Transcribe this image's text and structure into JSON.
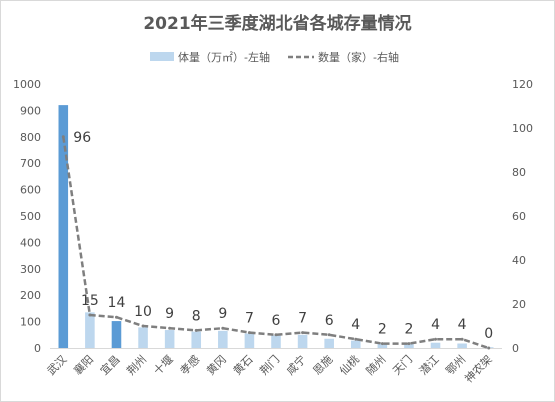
{
  "chart_data": {
    "type": "bar+line",
    "title": "2021年三季度湖北省各城存量情况",
    "categories": [
      "武汉",
      "襄阳",
      "宜昌",
      "荆州",
      "十堰",
      "孝感",
      "黄冈",
      "黄石",
      "荆门",
      "咸宁",
      "恩施",
      "仙桃",
      "随州",
      "天门",
      "潜江",
      "鄂州",
      "神农架"
    ],
    "series": [
      {
        "name": "体量（万㎡）-左轴",
        "axis": "left",
        "type": "bar",
        "values": [
          920,
          135,
          102,
          78,
          68,
          62,
          65,
          55,
          48,
          50,
          35,
          28,
          18,
          15,
          20,
          17,
          3
        ],
        "highlight_indices": [
          0,
          2
        ],
        "color": "#bdd7ee",
        "highlight_color": "#5b9bd5"
      },
      {
        "name": "数量（家）-右轴",
        "axis": "right",
        "type": "line",
        "values": [
          96,
          15,
          14,
          10,
          9,
          8,
          9,
          7,
          6,
          7,
          6,
          4,
          2,
          2,
          4,
          4,
          0
        ],
        "color": "#7f7f7f",
        "dashed": true
      }
    ],
    "left_axis": {
      "min": 0,
      "max": 1000,
      "step": 100,
      "ticks": [
        "0",
        "100",
        "200",
        "300",
        "400",
        "500",
        "600",
        "700",
        "800",
        "900",
        "1000"
      ]
    },
    "right_axis": {
      "min": 0,
      "max": 120,
      "step": 20,
      "ticks": [
        "0",
        "20",
        "40",
        "60",
        "80",
        "100",
        "120"
      ]
    },
    "grid": false,
    "legend_position": "top"
  }
}
